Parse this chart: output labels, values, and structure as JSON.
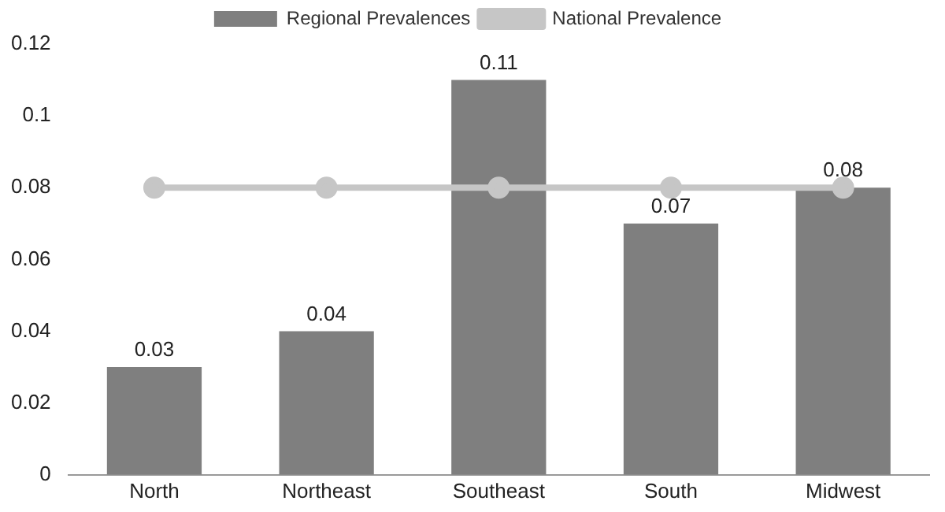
{
  "chart_data": {
    "type": "bar",
    "categories": [
      "North",
      "Northeast",
      "Southeast",
      "South",
      "Midwest"
    ],
    "series": [
      {
        "name": "Regional Prevalences",
        "color": "#7f7f7f",
        "values": [
          0.03,
          0.04,
          0.11,
          0.07,
          0.08
        ],
        "value_labels": [
          "0.03",
          "0.04",
          "0.11",
          "0.07",
          "0.08"
        ]
      },
      {
        "name": "National Prevalence",
        "type": "line",
        "color": "#c6c6c6",
        "values": [
          0.08,
          0.08,
          0.08,
          0.08,
          0.08
        ],
        "marker": "circle"
      }
    ],
    "ylim": [
      0,
      0.12
    ],
    "yticks": [
      0,
      0.02,
      0.04,
      0.06,
      0.08,
      0.1,
      0.12
    ],
    "grid": false,
    "legend": "top"
  }
}
